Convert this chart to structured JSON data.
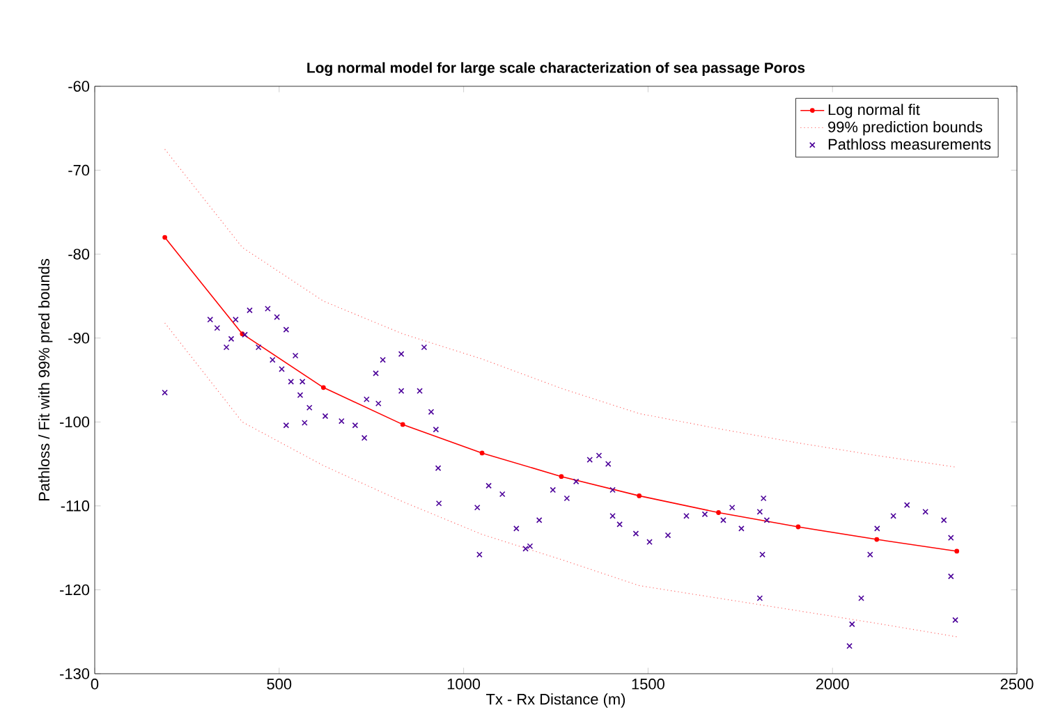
{
  "chart_data": {
    "type": "line",
    "title": "Log normal model for large scale characterization of sea passage Poros",
    "xlabel": "Tx - Rx Distance (m)",
    "ylabel": "Pathloss / Fit with 99% pred bounds",
    "xlim": [
      0,
      2500
    ],
    "xticks": [
      0,
      500,
      1000,
      1500,
      2000,
      2500
    ],
    "ylim": [
      -130,
      -60
    ],
    "yticks": [
      -130,
      -120,
      -110,
      -100,
      -90,
      -80,
      -70,
      -60
    ],
    "grid": false,
    "legend": "top right",
    "series": [
      {
        "name": "Log normal fit",
        "color": "#ff0000",
        "marker": "circle",
        "line_style": "solid",
        "x": [
          190,
          400,
          620,
          835,
          1050,
          1265,
          1476,
          1691,
          1907,
          2120,
          2337
        ],
        "values": [
          -78,
          -89.5,
          -95.9,
          -100.3,
          -103.7,
          -106.5,
          -108.8,
          -110.8,
          -112.5,
          -114,
          -115.4
        ]
      },
      {
        "name": "99% prediction bounds",
        "color": "#ff6666",
        "marker": "none",
        "line_style": "dotted",
        "x": [
          190,
          400,
          620,
          835,
          1050,
          1265,
          1476,
          1691,
          1907,
          2120,
          2337
        ],
        "values": [
          -67.5,
          -79.2,
          -85.6,
          -89.5,
          -92.5,
          -96.0,
          -99.0,
          -100.8,
          -102.5,
          -104,
          -105.4
        ]
      },
      {
        "color": "#ff6666",
        "marker": "none",
        "line_style": "dotted",
        "x": [
          190,
          400,
          620,
          835,
          1050,
          1265,
          1476,
          1691,
          1907,
          2120,
          2337
        ],
        "values": [
          -88.2,
          -100,
          -105.2,
          -109.5,
          -113.4,
          -116.4,
          -119.5,
          -121,
          -122.5,
          -124,
          -125.6
        ]
      },
      {
        "name": "Pathloss measurements",
        "type": "scatter",
        "color": "#4b0099",
        "marker": "cross",
        "x": [
          190,
          313,
          332,
          357,
          370,
          382,
          420,
          469,
          494,
          519,
          544,
          563,
          582,
          569,
          557,
          532,
          507,
          482,
          444,
          407,
          519,
          625,
          669,
          706,
          737,
          762,
          781,
          831,
          893,
          731,
          769,
          831,
          881,
          912,
          925,
          931,
          933,
          1037,
          1043,
          1068,
          1105,
          1143,
          1168,
          1180,
          1205,
          1242,
          1280,
          1305,
          1342,
          1367,
          1392,
          1404,
          1404,
          1423,
          1467,
          1504,
          1554,
          1604,
          1654,
          1704,
          1728,
          1753,
          1803,
          1813,
          1822,
          1810,
          1803,
          2046,
          2053,
          2078,
          2102,
          2121,
          2165,
          2202,
          2252,
          2302,
          2321,
          2321,
          2333
        ],
        "values": [
          -96.5,
          -87.8,
          -88.8,
          -91.1,
          -90.1,
          -87.8,
          -86.7,
          -86.5,
          -87.5,
          -89.0,
          -92.1,
          -95.2,
          -98.3,
          -100.1,
          -96.8,
          -95.2,
          -93.7,
          -92.6,
          -91.1,
          -89.6,
          -100.4,
          -99.3,
          -99.9,
          -100.4,
          -97.3,
          -94.2,
          -92.6,
          -91.9,
          -91.1,
          -101.9,
          -97.8,
          -96.3,
          -96.3,
          -98.8,
          -100.9,
          -105.5,
          -109.7,
          -110.2,
          -115.8,
          -107.6,
          -108.6,
          -112.7,
          -115.1,
          -114.8,
          -111.7,
          -108.1,
          -109.1,
          -107.1,
          -104.5,
          -104.0,
          -105.0,
          -108.1,
          -111.2,
          -112.2,
          -113.3,
          -114.3,
          -113.5,
          -111.2,
          -111.0,
          -111.7,
          -110.2,
          -112.7,
          -110.7,
          -109.1,
          -111.7,
          -115.8,
          -121.0,
          -126.7,
          -124.1,
          -121.0,
          -115.8,
          -112.7,
          -111.2,
          -109.9,
          -110.7,
          -111.7,
          -113.8,
          -118.4,
          -123.6
        ]
      }
    ]
  }
}
